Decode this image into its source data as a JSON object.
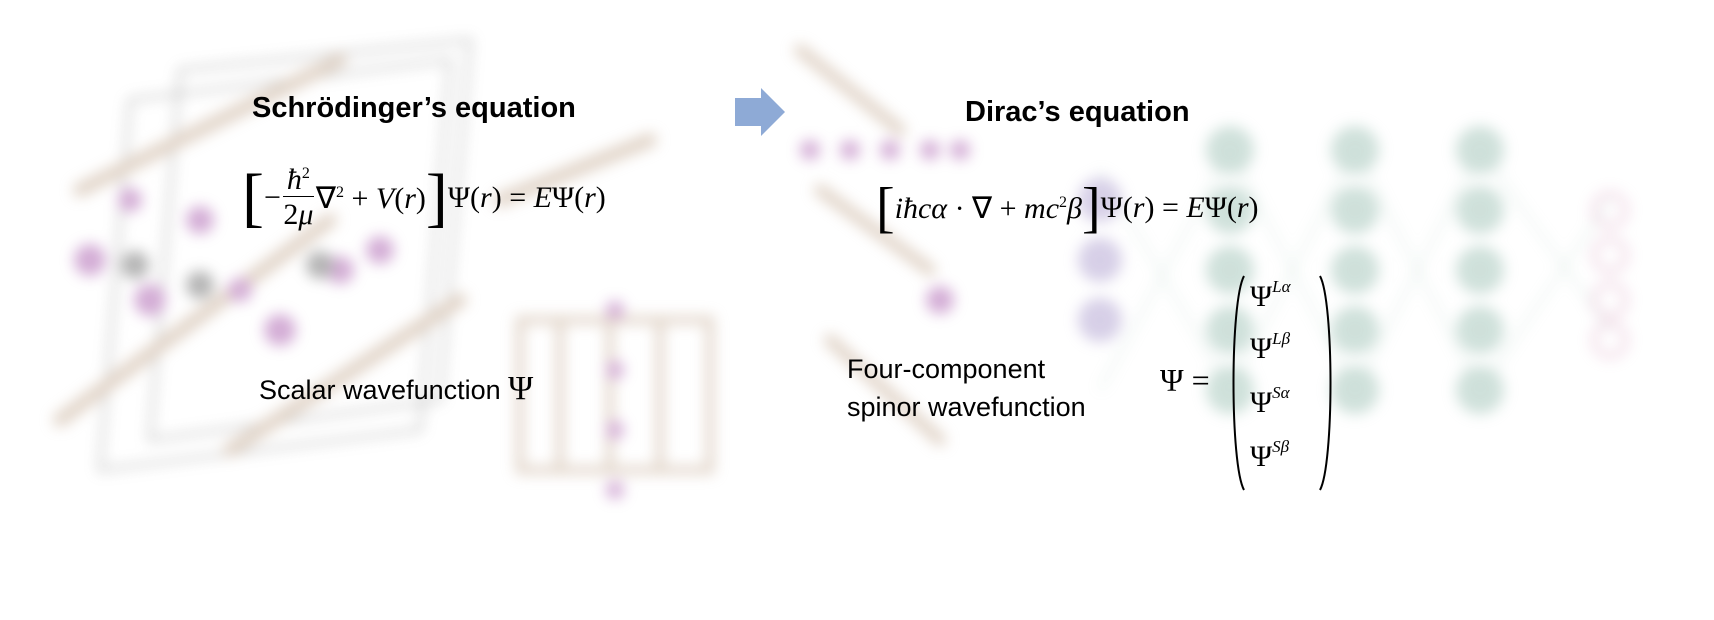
{
  "left": {
    "title": "Schrödinger’s equation",
    "equation": "[ −ħ²/2μ ∇² + V(r) ] Ψ(r) = EΨ(r)",
    "wavefunction_label": "Scalar wavefunction",
    "wavefunction_symbol": "Ψ"
  },
  "right": {
    "title": "Dirac’s equation",
    "equation": "[ iħcα·∇ + mc²β ] Ψ(r) = EΨ(r)",
    "wavefunction_label_line1": "Four-component",
    "wavefunction_label_line2": "spinor wavefunction",
    "spinor_lhs": "Ψ =",
    "spinor_components": [
      "Lα",
      "Lβ",
      "Sα",
      "Sβ"
    ]
  },
  "colors": {
    "arrow": "#8eaad6",
    "background_molecule": "#c8b09a",
    "background_atoms": "#b06ab4",
    "background_network": "#9fc3b6"
  },
  "icons": {
    "arrow": "right-arrow-icon"
  }
}
